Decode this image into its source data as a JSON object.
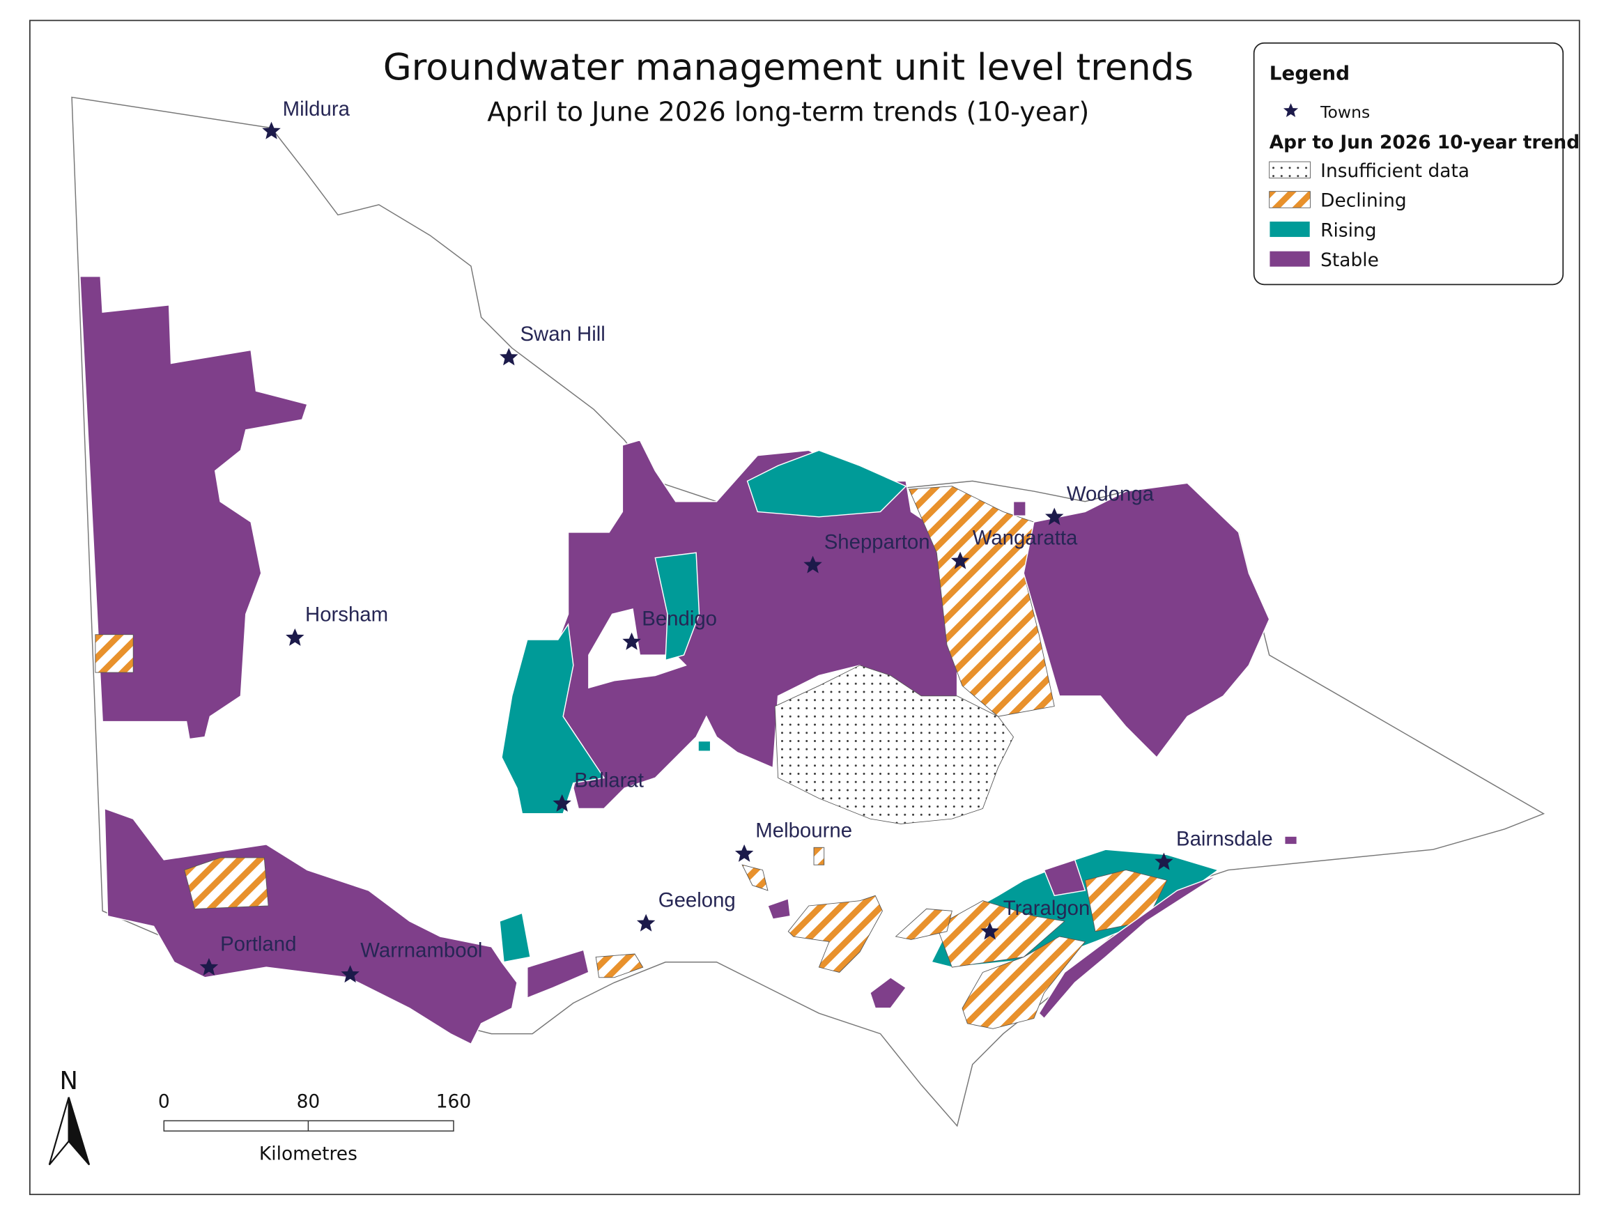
{
  "title": "Groundwater management unit level trends",
  "subtitle": "April to June 2026 long-term trends (10-year)",
  "legend": {
    "title": "Legend",
    "towns_label": "Towns",
    "trend_title": "Apr to Jun 2026 10-year trend",
    "items": [
      {
        "label": "Insufficient data"
      },
      {
        "label": "Declining"
      },
      {
        "label": "Rising"
      },
      {
        "label": "Stable"
      }
    ]
  },
  "towns": [
    {
      "name": "Mildura"
    },
    {
      "name": "Swan Hill"
    },
    {
      "name": "Horsham"
    },
    {
      "name": "Bendigo"
    },
    {
      "name": "Shepparton"
    },
    {
      "name": "Wangaratta"
    },
    {
      "name": "Wodonga"
    },
    {
      "name": "Ballarat"
    },
    {
      "name": "Melbourne"
    },
    {
      "name": "Geelong"
    },
    {
      "name": "Bairnsdale"
    },
    {
      "name": "Traralgon"
    },
    {
      "name": "Portland"
    },
    {
      "name": "Warrnambool"
    }
  ],
  "scale_bar": {
    "ticks": [
      0,
      80,
      160
    ],
    "unit": "Kilometres"
  },
  "north_label": "N"
}
